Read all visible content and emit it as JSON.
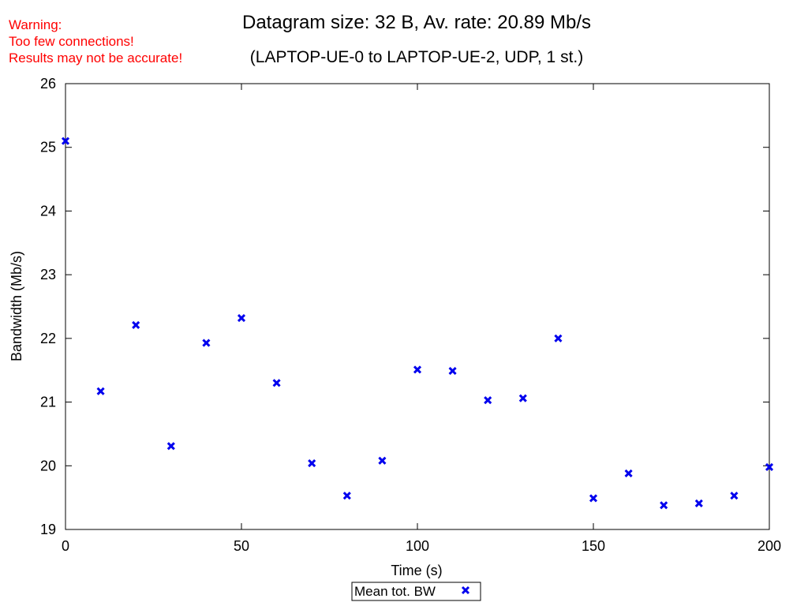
{
  "warning": {
    "line1": "Warning:",
    "line2": "Too few connections!",
    "line3": "Results may not be accurate!",
    "color": "#ff0000"
  },
  "chart_data": {
    "type": "scatter",
    "title": "Datagram size: 32 B, Av. rate: 20.89 Mb/s",
    "subtitle": "(LAPTOP-UE-0 to LAPTOP-UE-2, UDP, 1 st.)",
    "xlabel": "Time (s)",
    "ylabel": "Bandwidth (Mb/s)",
    "xlim": [
      0,
      200
    ],
    "ylim": [
      19,
      26
    ],
    "xticks": [
      0,
      50,
      100,
      150,
      200
    ],
    "yticks": [
      19,
      20,
      21,
      22,
      23,
      24,
      25,
      26
    ],
    "grid": false,
    "legend_position": "bottom-center",
    "series": [
      {
        "name": "Mean tot. BW",
        "color": "#0000ee",
        "marker": "x",
        "x": [
          0,
          10,
          20,
          30,
          40,
          50,
          60,
          70,
          80,
          90,
          100,
          110,
          120,
          130,
          140,
          150,
          160,
          170,
          180,
          190,
          200
        ],
        "y": [
          25.1,
          21.17,
          22.21,
          20.31,
          21.93,
          22.32,
          21.3,
          20.04,
          19.53,
          20.08,
          21.51,
          21.49,
          21.03,
          21.06,
          22.0,
          19.49,
          19.88,
          19.38,
          19.41,
          19.53,
          19.98
        ]
      }
    ]
  }
}
